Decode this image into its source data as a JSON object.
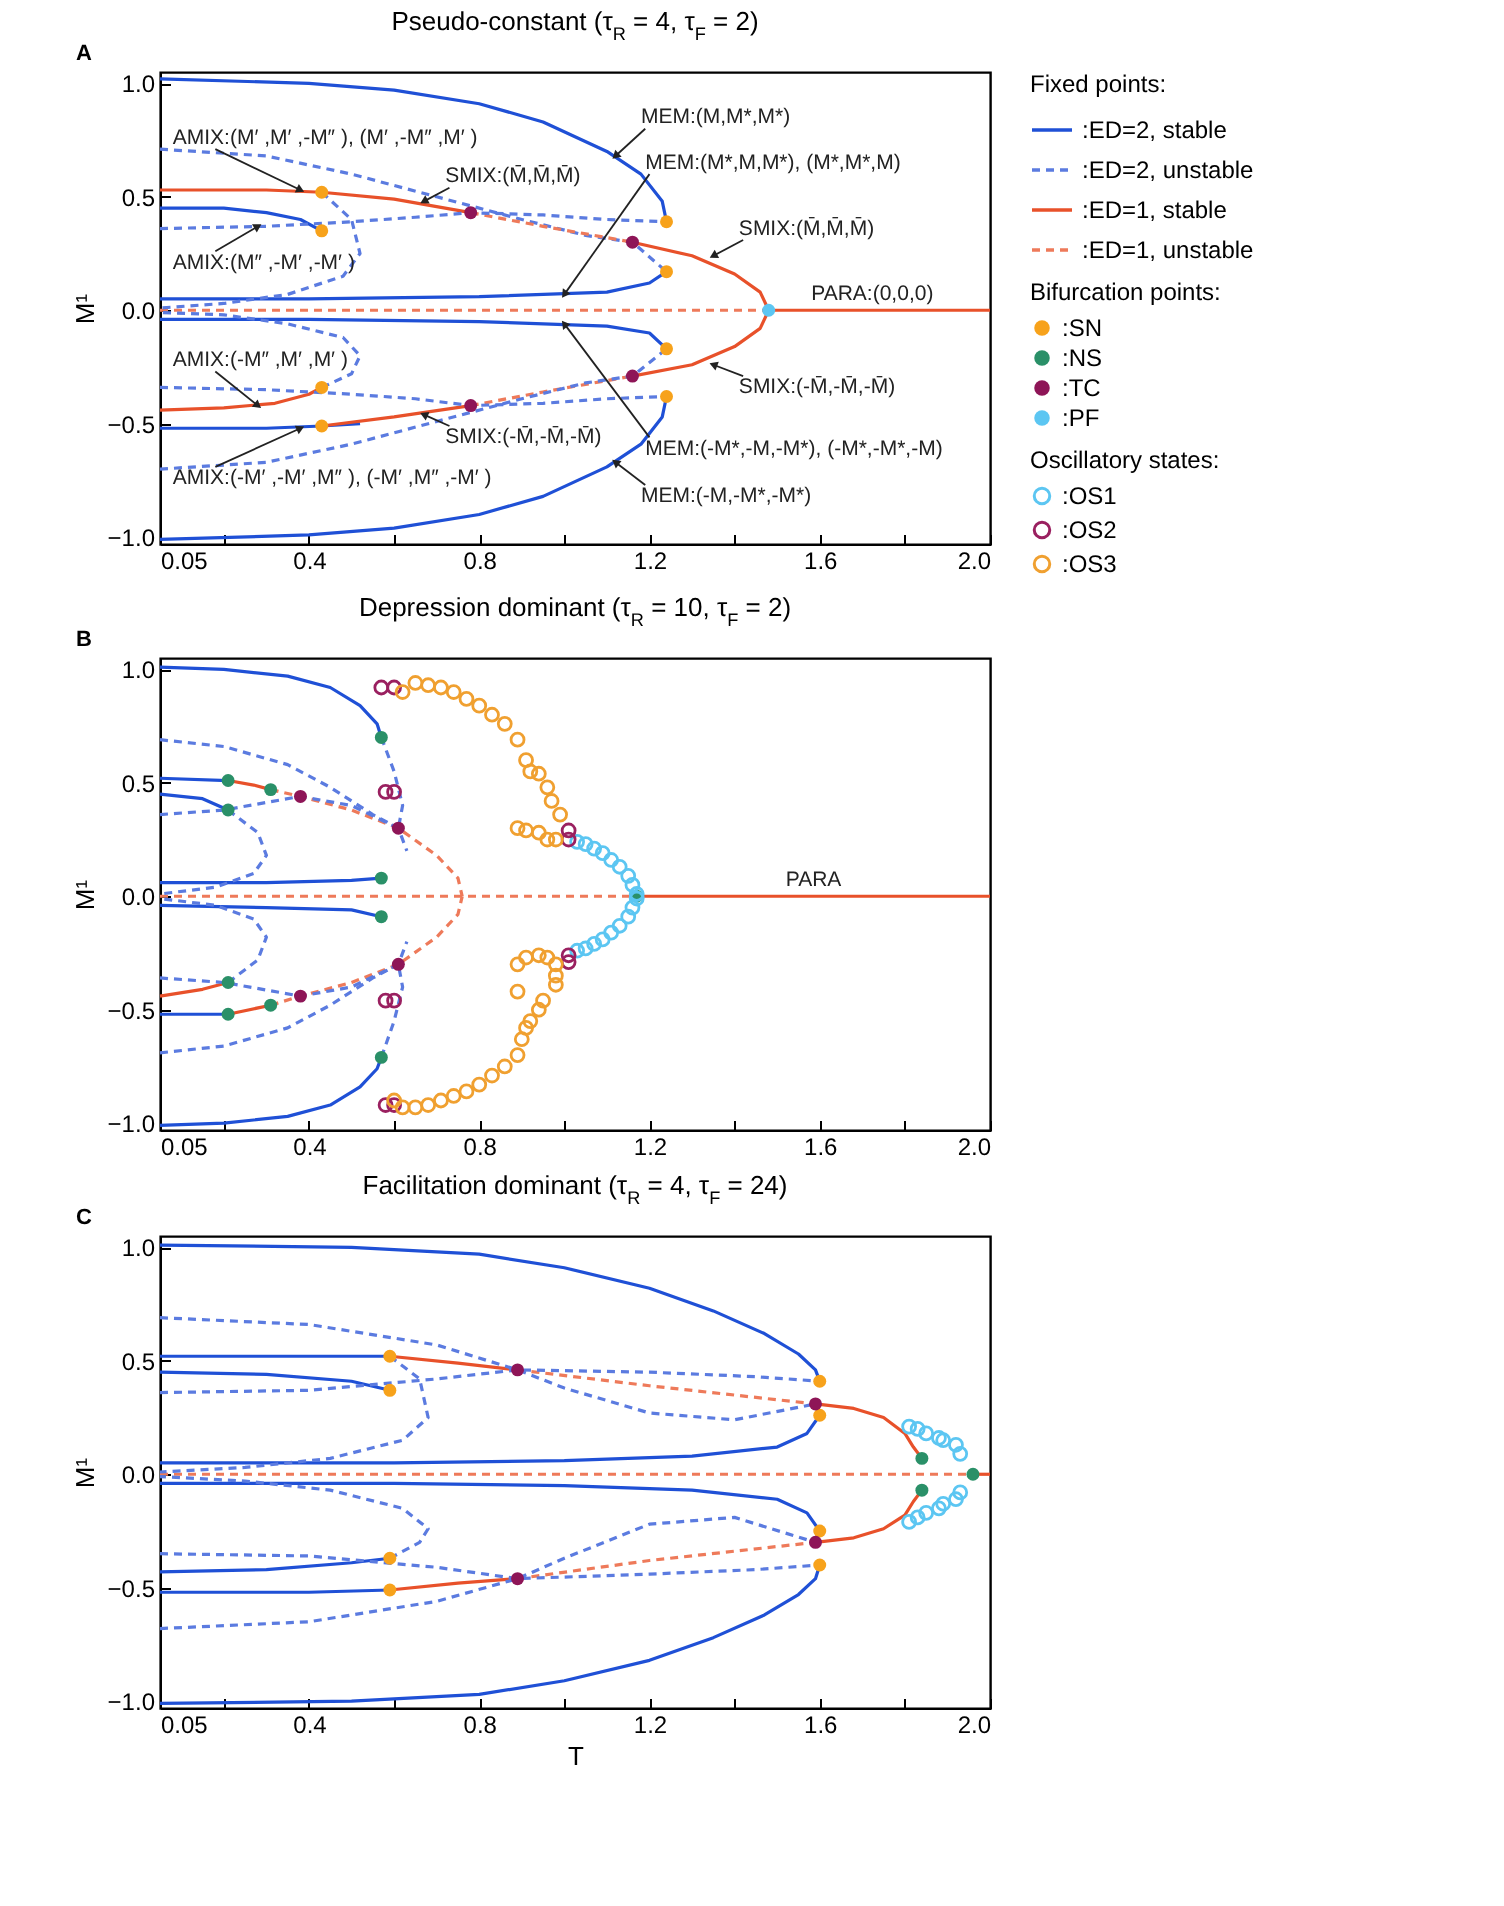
{
  "chart_data": [
    {
      "type": "line",
      "title": "Pseudo-constant (τ$_{R}$ = 4, τ$_{F}$ = 2)",
      "ylabel": "M¹",
      "legend": "right",
      "legend_title": [
        "Fixed points:",
        "Bifurcation points:",
        "Oscillatory states:"
      ],
      "xlim": [
        0.05,
        2.0
      ],
      "ylim": [
        -1.03,
        1.05
      ],
      "xticks": [
        0.05,
        {
          "value": 0.2,
          "label": null
        },
        0.4,
        {
          "value": 0.6,
          "label": null
        },
        0.8,
        {
          "value": 1.0,
          "label": null
        },
        1.2,
        {
          "value": 1.4,
          "label": null
        },
        1.6,
        {
          "value": 1.8,
          "label": null
        },
        {
          "value": 2.0,
          "label": "2.0"
        }
      ],
      "yticks": [
        {
          "value": -1,
          "label": "−1.0"
        },
        {
          "value": -0.5,
          "label": "−0.5"
        },
        {
          "value": 0,
          "label": "0.0"
        },
        {
          "value": 0.5,
          "label": "0.5"
        },
        {
          "value": 1,
          "label": "1.0"
        }
      ],
      "annotations": [
        "A",
        {
          "text": "AMIX:(M′ ,M′ ,-M″ ), (M′ ,-M″ ,M′ )",
          "x": 0.38,
          "y": 0.53
        },
        {
          "text": "AMIX:(M″ ,-M′ ,-M′ )",
          "x": 0.28,
          "y": 0.37
        },
        {
          "text": "AMIX:(-M″ ,M′ ,M′ )",
          "x": 0.28,
          "y": -0.42
        },
        {
          "text": "AMIX:(-M′ ,-M′ ,M″ ), (-M′ ,M″ ,-M′ )",
          "x": 0.38,
          "y": -0.52
        },
        {
          "text": "SMIX:(M̄,M̄,M̄)",
          "x": 0.67,
          "y": 0.48
        },
        {
          "text": "SMIX:(-M̄,-M̄,-M̄)",
          "x": 0.67,
          "y": -0.46
        },
        {
          "text": "MEM:(M,M*,M*)",
          "x": 1.12,
          "y": 0.68
        },
        {
          "text": "MEM:(M*,M,M*), (M*,M*,M)",
          "x": 1.0,
          "y": 0.07
        },
        {
          "text": "SMIX:(M̄,M̄,M̄)",
          "x": 1.35,
          "y": 0.24
        },
        {
          "text": "PARA:(0,0,0)",
          "x": 1.7,
          "y": 0
        },
        {
          "text": "SMIX:(-M̄,-M̄,-M̄)",
          "x": 1.35,
          "y": -0.24
        },
        {
          "text": "MEM:(-M*,-M,-M*), (-M*,-M*,-M)",
          "x": 1.0,
          "y": -0.06
        },
        {
          "text": "MEM:(-M,-M*,-M*)",
          "x": 1.12,
          "y": -0.67
        }
      ],
      "series": [
        {
          "name": ":ED=2, stable",
          "type": "line",
          "line_style": "solid",
          "color": "#1f50d6",
          "x": [
            0.05,
            0.4,
            0.6,
            0.8,
            0.95,
            1.1,
            1.18,
            1.23,
            1.24
          ],
          "values": [
            1.02,
            1.0,
            0.97,
            0.91,
            0.83,
            0.7,
            0.6,
            0.48,
            0.39
          ]
        },
        {
          "name": ":ED=2, unstable",
          "type": "line",
          "line_style": "dashed",
          "color": "#5b7be0",
          "x": [
            0.05,
            0.3,
            0.5,
            0.7,
            0.9,
            1.05,
            1.16,
            1.24
          ],
          "values": [
            0.71,
            0.68,
            0.6,
            0.5,
            0.4,
            0.33,
            0.3,
            0.17
          ]
        },
        {
          "name": ":ED=1, stable",
          "type": "line",
          "line_style": "solid",
          "color": "#e8512a",
          "x": [
            0.05,
            0.3,
            0.43,
            0.6,
            0.78
          ],
          "values": [
            0.53,
            0.53,
            0.52,
            0.49,
            0.43
          ]
        },
        {
          "name": ":ED=1, unstable",
          "type": "line",
          "line_style": "dashed",
          "color": "#ee7a5a",
          "x": [
            0.05,
            1.48
          ],
          "values": [
            0,
            0
          ]
        },
        {
          "type": "line",
          "line_style": "solid",
          "color": "#1f50d6",
          "x": [
            0.05,
            0.4,
            0.6,
            0.8,
            0.95,
            1.1,
            1.18,
            1.23,
            1.24
          ],
          "values": [
            -1.01,
            -0.99,
            -0.96,
            -0.9,
            -0.82,
            -0.69,
            -0.59,
            -0.47,
            -0.38
          ]
        },
        {
          "type": "line",
          "line_style": "solid",
          "color": "#1f50d6",
          "x": [
            0.05,
            0.4,
            0.8,
            1.1,
            1.2,
            1.24
          ],
          "values": [
            0.05,
            0.05,
            0.06,
            0.08,
            0.12,
            0.17
          ]
        },
        {
          "type": "line",
          "line_style": "solid",
          "color": "#1f50d6",
          "x": [
            0.05,
            0.4,
            0.8,
            1.1,
            1.2,
            1.24
          ],
          "values": [
            -0.04,
            -0.04,
            -0.05,
            -0.07,
            -0.1,
            -0.17
          ]
        },
        {
          "type": "line",
          "line_style": "solid",
          "color": "#1f50d6",
          "x": [
            0.05,
            0.2,
            0.3,
            0.38,
            0.43
          ],
          "values": [
            0.45,
            0.45,
            0.43,
            0.4,
            0.35
          ]
        },
        {
          "type": "line",
          "line_style": "solid",
          "color": "#1f50d6",
          "x": [
            0.05,
            0.3,
            0.43,
            0.52
          ],
          "values": [
            -0.52,
            -0.52,
            -0.51,
            -0.5
          ]
        },
        {
          "type": "line",
          "line_style": "solid",
          "color": "#e8512a",
          "x": [
            0.05,
            0.2,
            0.32,
            0.4,
            0.43
          ],
          "values": [
            -0.44,
            -0.43,
            -0.41,
            -0.37,
            -0.34
          ]
        },
        {
          "type": "line",
          "line_style": "solid",
          "color": "#e8512a",
          "x": [
            0.43,
            0.6,
            0.78
          ],
          "values": [
            -0.51,
            -0.47,
            -0.42
          ]
        },
        {
          "type": "line",
          "line_style": "solid",
          "color": "#e8512a",
          "x": [
            1.16,
            1.3,
            1.4,
            1.46,
            1.48
          ],
          "values": [
            0.3,
            0.24,
            0.16,
            0.08,
            0
          ]
        },
        {
          "type": "line",
          "line_style": "solid",
          "color": "#e8512a",
          "x": [
            1.16,
            1.3,
            1.4,
            1.46,
            1.48
          ],
          "values": [
            -0.29,
            -0.24,
            -0.16,
            -0.08,
            0
          ]
        },
        {
          "type": "line",
          "line_style": "solid",
          "color": "#e8512a",
          "x": [
            1.48,
            2.0
          ],
          "values": [
            0,
            0
          ]
        },
        {
          "type": "line",
          "line_style": "dashed",
          "color": "#ee7a5a",
          "x": [
            0.78,
            0.95,
            1.16
          ],
          "values": [
            0.43,
            0.37,
            0.3
          ]
        },
        {
          "type": "line",
          "line_style": "dashed",
          "color": "#ee7a5a",
          "x": [
            0.78,
            0.95,
            1.16
          ],
          "values": [
            -0.42,
            -0.36,
            -0.29
          ]
        },
        {
          "type": "line",
          "line_style": "dashed",
          "color": "#5b7be0",
          "x": [
            0.05,
            0.3,
            0.5,
            0.65,
            0.78,
            0.95,
            1.1,
            1.24
          ],
          "values": [
            0.36,
            0.37,
            0.39,
            0.41,
            0.43,
            0.42,
            0.4,
            0.39
          ]
        },
        {
          "type": "line",
          "line_style": "dashed",
          "color": "#5b7be0",
          "x": [
            0.43,
            0.5,
            0.52,
            0.48,
            0.35,
            0.2,
            0.05
          ],
          "values": [
            0.52,
            0.4,
            0.25,
            0.15,
            0.07,
            0.03,
            0.01
          ]
        },
        {
          "type": "line",
          "line_style": "dashed",
          "color": "#5b7be0",
          "x": [
            0.05,
            0.3,
            0.5,
            0.7,
            0.9,
            1.05,
            1.16,
            1.24
          ],
          "values": [
            -0.7,
            -0.67,
            -0.59,
            -0.49,
            -0.39,
            -0.32,
            -0.29,
            -0.17
          ]
        },
        {
          "type": "line",
          "line_style": "dashed",
          "color": "#5b7be0",
          "x": [
            0.05,
            0.3,
            0.5,
            0.65,
            0.78,
            0.95,
            1.1,
            1.24
          ],
          "values": [
            -0.34,
            -0.35,
            -0.37,
            -0.39,
            -0.42,
            -0.41,
            -0.39,
            -0.38
          ]
        },
        {
          "type": "line",
          "line_style": "dashed",
          "color": "#5b7be0",
          "x": [
            0.43,
            0.5,
            0.52,
            0.48,
            0.35,
            0.2,
            0.05
          ],
          "values": [
            -0.34,
            -0.28,
            -0.2,
            -0.12,
            -0.06,
            -0.02,
            -0.01
          ]
        },
        {
          "name": ":SN",
          "type": "scatter",
          "marker": "circle",
          "color": "#f7a21b",
          "x": [
            0.43,
            0.43,
            0.43,
            0.43,
            1.24,
            1.24,
            1.24,
            1.24
          ],
          "values": [
            0.52,
            0.35,
            -0.34,
            -0.51,
            0.39,
            0.17,
            -0.17,
            -0.38
          ]
        },
        {
          "name": ":NS",
          "type": "scatter",
          "marker": "circle",
          "color": "#2a9068"
        },
        {
          "name": ":TC",
          "type": "scatter",
          "marker": "circle",
          "color": "#8e1557",
          "x": [
            0.78,
            1.16,
            0.78,
            1.16
          ],
          "values": [
            0.43,
            0.3,
            -0.42,
            -0.29
          ]
        },
        {
          "name": ":PF",
          "type": "scatter",
          "marker": "circle",
          "color": "#5cc6f2",
          "x": [
            1.48
          ],
          "values": [
            0
          ]
        },
        {
          "name": ":OS1",
          "type": "scatter",
          "marker": "circle-open",
          "color": "#5cc6f2"
        },
        {
          "name": ":OS2",
          "type": "scatter",
          "marker": "circle-open",
          "color": "#9a2060"
        },
        {
          "name": ":OS3",
          "type": "scatter",
          "marker": "circle-open",
          "color": "#f0a030"
        }
      ]
    },
    {
      "type": "line",
      "title": "Depression dominant (τ$_{R}$ = 10, τ$_{F}$ = 2)",
      "ylabel": "M¹",
      "xlim": [
        0.05,
        2.0
      ],
      "ylim": [
        -1.03,
        1.05
      ],
      "xticks": [
        0.05,
        {
          "value": 0.2,
          "label": null
        },
        0.4,
        {
          "value": 0.6,
          "label": null
        },
        0.8,
        {
          "value": 1.0,
          "label": null
        },
        1.2,
        {
          "value": 1.4,
          "label": null
        },
        1.6,
        {
          "value": 1.8,
          "label": null
        },
        {
          "value": 2.0,
          "label": "2.0"
        }
      ],
      "yticks": [
        {
          "value": -1,
          "label": "−1.0"
        },
        {
          "value": -0.5,
          "label": "−0.5"
        },
        {
          "value": 0,
          "label": "0.0"
        },
        {
          "value": 0.5,
          "label": "0.5"
        },
        {
          "value": 1,
          "label": "1.0"
        }
      ],
      "annotations": [
        "B",
        {
          "text": "PARA",
          "x": 1.6,
          "y": 0
        }
      ],
      "series": [
        {
          "type": "line",
          "line_style": "solid",
          "color": "#1f50d6",
          "x": [
            0.05,
            0.2,
            0.35,
            0.45,
            0.52,
            0.56,
            0.57
          ],
          "values": [
            1.01,
            1.0,
            0.97,
            0.92,
            0.84,
            0.76,
            0.7
          ]
        },
        {
          "type": "line",
          "line_style": "solid",
          "color": "#1f50d6",
          "x": [
            0.05,
            0.2,
            0.35,
            0.45,
            0.52,
            0.56,
            0.57
          ],
          "values": [
            -1.01,
            -1.0,
            -0.97,
            -0.92,
            -0.84,
            -0.76,
            -0.71
          ]
        },
        {
          "type": "line",
          "line_style": "solid",
          "color": "#1f50d6",
          "x": [
            0.05,
            0.3,
            0.5,
            0.57
          ],
          "values": [
            0.06,
            0.06,
            0.07,
            0.08
          ]
        },
        {
          "type": "line",
          "line_style": "solid",
          "color": "#1f50d6",
          "x": [
            0.05,
            0.3,
            0.5,
            0.57
          ],
          "values": [
            -0.04,
            -0.05,
            -0.06,
            -0.09
          ]
        },
        {
          "type": "line",
          "line_style": "solid",
          "color": "#1f50d6",
          "x": [
            0.05,
            0.21
          ],
          "values": [
            0.52,
            0.51
          ]
        },
        {
          "type": "line",
          "line_style": "solid",
          "color": "#1f50d6",
          "x": [
            0.05,
            0.15,
            0.21
          ],
          "values": [
            0.45,
            0.43,
            0.38
          ]
        },
        {
          "type": "line",
          "line_style": "solid",
          "color": "#1f50d6",
          "x": [
            0.05,
            0.21
          ],
          "values": [
            -0.52,
            -0.52
          ]
        },
        {
          "type": "line",
          "line_style": "solid",
          "color": "#e8512a",
          "x": [
            0.21,
            0.27,
            0.31
          ],
          "values": [
            0.51,
            0.49,
            0.47
          ]
        },
        {
          "type": "line",
          "line_style": "solid",
          "color": "#e8512a",
          "x": [
            0.05,
            0.15,
            0.21
          ],
          "values": [
            -0.44,
            -0.41,
            -0.38
          ]
        },
        {
          "type": "line",
          "line_style": "solid",
          "color": "#e8512a",
          "x": [
            0.21,
            0.31
          ],
          "values": [
            -0.52,
            -0.48
          ]
        },
        {
          "type": "line",
          "line_style": "solid",
          "color": "#e8512a",
          "x": [
            1.17,
            2.0
          ],
          "values": [
            0,
            0
          ]
        },
        {
          "type": "line",
          "line_style": "dashed",
          "color": "#ee7a5a",
          "x": [
            0.05,
            1.17
          ],
          "values": [
            0,
            0
          ]
        },
        {
          "type": "line",
          "line_style": "dashed",
          "color": "#ee7a5a",
          "x": [
            0.31,
            0.38,
            0.5,
            0.61,
            0.7,
            0.75,
            0.76
          ],
          "values": [
            0.47,
            0.44,
            0.38,
            0.3,
            0.18,
            0.08,
            0
          ]
        },
        {
          "type": "line",
          "line_style": "dashed",
          "color": "#ee7a5a",
          "x": [
            0.31,
            0.38,
            0.5,
            0.61,
            0.7,
            0.75,
            0.76
          ],
          "values": [
            -0.48,
            -0.44,
            -0.38,
            -0.3,
            -0.18,
            -0.08,
            0
          ]
        },
        {
          "type": "line",
          "line_style": "dashed",
          "color": "#5b7be0",
          "x": [
            0.05,
            0.2,
            0.35,
            0.45,
            0.55,
            0.61,
            0.63
          ],
          "values": [
            0.69,
            0.66,
            0.58,
            0.48,
            0.36,
            0.3,
            0.2
          ]
        },
        {
          "type": "line",
          "line_style": "dashed",
          "color": "#5b7be0",
          "x": [
            0.05,
            0.2,
            0.38,
            0.5,
            0.61
          ],
          "values": [
            0.36,
            0.38,
            0.44,
            0.4,
            0.3
          ]
        },
        {
          "type": "line",
          "line_style": "dashed",
          "color": "#5b7be0",
          "x": [
            0.21,
            0.28,
            0.3,
            0.27,
            0.18,
            0.05
          ],
          "values": [
            0.38,
            0.28,
            0.18,
            0.1,
            0.04,
            0.01
          ]
        },
        {
          "type": "line",
          "line_style": "dashed",
          "color": "#5b7be0",
          "x": [
            0.05,
            0.2,
            0.35,
            0.45,
            0.55,
            0.61,
            0.63
          ],
          "values": [
            -0.69,
            -0.66,
            -0.58,
            -0.48,
            -0.36,
            -0.3,
            -0.2
          ]
        },
        {
          "type": "line",
          "line_style": "dashed",
          "color": "#5b7be0",
          "x": [
            0.05,
            0.2,
            0.38,
            0.5,
            0.61
          ],
          "values": [
            -0.36,
            -0.38,
            -0.44,
            -0.4,
            -0.3
          ]
        },
        {
          "type": "line",
          "line_style": "dashed",
          "color": "#5b7be0",
          "x": [
            0.21,
            0.28,
            0.3,
            0.27,
            0.18,
            0.05
          ],
          "values": [
            -0.38,
            -0.28,
            -0.18,
            -0.1,
            -0.04,
            -0.01
          ]
        },
        {
          "type": "line",
          "line_style": "dashed",
          "color": "#5b7be0",
          "x": [
            0.57,
            0.6,
            0.62,
            0.61
          ],
          "values": [
            0.7,
            0.55,
            0.4,
            0.3
          ]
        },
        {
          "type": "line",
          "line_style": "dashed",
          "color": "#5b7be0",
          "x": [
            0.57,
            0.6,
            0.62,
            0.61
          ],
          "values": [
            -0.71,
            -0.55,
            -0.4,
            -0.3
          ]
        },
        {
          "type": "scatter",
          "marker": "circle-open",
          "color": "#5cc6f2",
          "x": [
            1.03,
            1.05,
            1.07,
            1.09,
            1.11,
            1.13,
            1.15,
            1.16,
            1.17,
            1.03,
            1.05,
            1.07,
            1.09,
            1.11,
            1.13,
            1.15,
            1.16,
            1.17
          ],
          "values": [
            0.24,
            0.23,
            0.21,
            0.19,
            0.16,
            0.13,
            0.09,
            0.05,
            0.01,
            -0.24,
            -0.23,
            -0.21,
            -0.19,
            -0.16,
            -0.13,
            -0.09,
            -0.05,
            -0.01
          ]
        },
        {
          "type": "scatter",
          "marker": "circle-open",
          "color": "#9a2060",
          "x": [
            0.57,
            0.6,
            0.58,
            0.6,
            0.58,
            0.6,
            0.58,
            0.6,
            1.01,
            1.01,
            1.01,
            1.01
          ],
          "values": [
            0.92,
            0.92,
            0.46,
            0.46,
            -0.46,
            -0.46,
            -0.92,
            -0.92,
            0.29,
            0.25,
            -0.26,
            -0.29
          ]
        },
        {
          "type": "scatter",
          "marker": "circle-open",
          "color": "#f0a030",
          "x": [
            0.62,
            0.65,
            0.68,
            0.71,
            0.74,
            0.77,
            0.8,
            0.83,
            0.86,
            0.89,
            0.91,
            0.92,
            0.94,
            0.96,
            0.97,
            0.99,
            0.89,
            0.91,
            0.94,
            0.96,
            0.98,
            0.6,
            0.62,
            0.65,
            0.68,
            0.71,
            0.74,
            0.77,
            0.8,
            0.83,
            0.86,
            0.89,
            0.9,
            0.91,
            0.92,
            0.94,
            0.95,
            0.98,
            0.89,
            0.91,
            0.94,
            0.96,
            0.98,
            0.89,
            0.98
          ],
          "values": [
            0.9,
            0.94,
            0.93,
            0.92,
            0.9,
            0.87,
            0.84,
            0.8,
            0.76,
            0.69,
            0.6,
            0.55,
            0.54,
            0.48,
            0.42,
            0.36,
            0.3,
            0.29,
            0.28,
            0.25,
            0.25,
            -0.9,
            -0.93,
            -0.93,
            -0.92,
            -0.9,
            -0.88,
            -0.86,
            -0.83,
            -0.79,
            -0.75,
            -0.7,
            -0.63,
            -0.58,
            -0.55,
            -0.5,
            -0.46,
            -0.39,
            -0.3,
            -0.27,
            -0.26,
            -0.27,
            -0.3,
            -0.42,
            -0.35
          ]
        },
        {
          "type": "scatter",
          "marker": "circle",
          "color": "#2a9068",
          "x": [
            0.57,
            0.57,
            0.57,
            0.57,
            0.21,
            0.21,
            0.21,
            0.21,
            0.31,
            0.31,
            1.17
          ],
          "values": [
            0.7,
            -0.71,
            0.08,
            -0.09,
            0.51,
            0.38,
            -0.38,
            -0.52,
            0.47,
            -0.48,
            0
          ]
        },
        {
          "type": "scatter",
          "marker": "circle",
          "color": "#8e1557",
          "x": [
            0.38,
            0.38,
            0.61,
            0.61
          ],
          "values": [
            0.44,
            -0.44,
            0.3,
            -0.3
          ]
        }
      ]
    },
    {
      "type": "line",
      "title": "Facilitation dominant (τ$_{R}$ = 4, τ$_{F}$ = 24)",
      "xlabel": "T",
      "ylabel": "M¹",
      "xlim": [
        0.05,
        2.0
      ],
      "ylim": [
        -1.03,
        1.05
      ],
      "xticks": [
        0.05,
        {
          "value": 0.2,
          "label": null
        },
        0.4,
        {
          "value": 0.6,
          "label": null
        },
        0.8,
        {
          "value": 1.0,
          "label": null
        },
        1.2,
        {
          "value": 1.4,
          "label": null
        },
        1.6,
        {
          "value": 1.8,
          "label": null
        },
        {
          "value": 2.0,
          "label": "2.0"
        }
      ],
      "yticks": [
        {
          "value": -1,
          "label": "−1.0"
        },
        {
          "value": -0.5,
          "label": "−0.5"
        },
        {
          "value": 0,
          "label": "0.0"
        },
        {
          "value": 0.5,
          "label": "0.5"
        },
        {
          "value": 1,
          "label": "1.0"
        }
      ],
      "annotations": [
        "C"
      ],
      "series": [
        {
          "type": "line",
          "line_style": "solid",
          "color": "#1f50d6",
          "x": [
            0.05,
            0.5,
            0.8,
            1.0,
            1.2,
            1.35,
            1.47,
            1.55,
            1.59,
            1.6
          ],
          "values": [
            1.01,
            1.0,
            0.97,
            0.91,
            0.82,
            0.72,
            0.62,
            0.53,
            0.46,
            0.41
          ]
        },
        {
          "type": "line",
          "line_style": "solid",
          "color": "#1f50d6",
          "x": [
            0.05,
            0.5,
            0.8,
            1.0,
            1.2,
            1.35,
            1.47,
            1.55,
            1.59,
            1.6
          ],
          "values": [
            -1.01,
            -1.0,
            -0.97,
            -0.91,
            -0.82,
            -0.72,
            -0.62,
            -0.53,
            -0.46,
            -0.4
          ]
        },
        {
          "type": "line",
          "line_style": "solid",
          "color": "#1f50d6",
          "x": [
            0.05,
            0.6,
            1.0,
            1.3,
            1.5,
            1.57,
            1.6
          ],
          "values": [
            0.05,
            0.05,
            0.06,
            0.08,
            0.12,
            0.18,
            0.26
          ]
        },
        {
          "type": "line",
          "line_style": "solid",
          "color": "#1f50d6",
          "x": [
            0.05,
            0.6,
            1.0,
            1.3,
            1.5,
            1.57,
            1.6
          ],
          "values": [
            -0.04,
            -0.04,
            -0.05,
            -0.07,
            -0.11,
            -0.17,
            -0.25
          ]
        },
        {
          "type": "line",
          "line_style": "solid",
          "color": "#1f50d6",
          "x": [
            0.05,
            0.4,
            0.59
          ],
          "values": [
            0.52,
            0.52,
            0.52
          ]
        },
        {
          "type": "line",
          "line_style": "solid",
          "color": "#1f50d6",
          "x": [
            0.05,
            0.3,
            0.5,
            0.59
          ],
          "values": [
            0.45,
            0.44,
            0.41,
            0.37
          ]
        },
        {
          "type": "line",
          "line_style": "solid",
          "color": "#1f50d6",
          "x": [
            0.05,
            0.3,
            0.5,
            0.59
          ],
          "values": [
            -0.43,
            -0.42,
            -0.39,
            -0.37
          ]
        },
        {
          "type": "line",
          "line_style": "solid",
          "color": "#1f50d6",
          "x": [
            0.05,
            0.4,
            0.59
          ],
          "values": [
            -0.52,
            -0.52,
            -0.51
          ]
        },
        {
          "type": "line",
          "line_style": "solid",
          "color": "#e8512a",
          "x": [
            0.59,
            0.75,
            0.89
          ],
          "values": [
            0.52,
            0.49,
            0.46
          ]
        },
        {
          "type": "line",
          "line_style": "solid",
          "color": "#e8512a",
          "x": [
            0.59,
            0.75,
            0.89
          ],
          "values": [
            -0.51,
            -0.48,
            -0.46
          ]
        },
        {
          "type": "line",
          "line_style": "solid",
          "color": "#e8512a",
          "x": [
            1.59,
            1.68,
            1.75,
            1.8,
            1.82,
            1.84
          ],
          "values": [
            0.31,
            0.29,
            0.25,
            0.18,
            0.12,
            0.07
          ]
        },
        {
          "type": "line",
          "line_style": "solid",
          "color": "#e8512a",
          "x": [
            1.59,
            1.68,
            1.75,
            1.8,
            1.82,
            1.84
          ],
          "values": [
            -0.3,
            -0.28,
            -0.24,
            -0.18,
            -0.12,
            -0.07
          ]
        },
        {
          "type": "line",
          "line_style": "solid",
          "color": "#e8512a",
          "x": [
            1.96,
            2.0
          ],
          "values": [
            0,
            0
          ]
        },
        {
          "type": "line",
          "line_style": "dashed",
          "color": "#ee7a5a",
          "x": [
            0.05,
            1.96
          ],
          "values": [
            0,
            0
          ]
        },
        {
          "type": "line",
          "line_style": "dashed",
          "color": "#ee7a5a",
          "x": [
            0.89,
            1.2,
            1.59
          ],
          "values": [
            0.46,
            0.39,
            0.31
          ]
        },
        {
          "type": "line",
          "line_style": "dashed",
          "color": "#ee7a5a",
          "x": [
            0.89,
            1.2,
            1.59
          ],
          "values": [
            -0.46,
            -0.38,
            -0.3
          ]
        },
        {
          "type": "line",
          "line_style": "dashed",
          "color": "#5b7be0",
          "x": [
            0.05,
            0.4,
            0.7,
            0.89,
            1.0,
            1.2,
            1.4,
            1.59
          ],
          "values": [
            0.69,
            0.66,
            0.57,
            0.46,
            0.38,
            0.27,
            0.24,
            0.31
          ]
        },
        {
          "type": "line",
          "line_style": "dashed",
          "color": "#5b7be0",
          "x": [
            0.05,
            0.4,
            0.7,
            0.89,
            1.2,
            1.45,
            1.6
          ],
          "values": [
            0.36,
            0.37,
            0.42,
            0.46,
            0.45,
            0.43,
            0.41
          ]
        },
        {
          "type": "line",
          "line_style": "dashed",
          "color": "#5b7be0",
          "x": [
            0.59,
            0.66,
            0.68,
            0.62,
            0.45,
            0.25,
            0.05
          ],
          "values": [
            0.52,
            0.42,
            0.25,
            0.15,
            0.07,
            0.03,
            0.01
          ]
        },
        {
          "type": "line",
          "line_style": "dashed",
          "color": "#5b7be0",
          "x": [
            0.05,
            0.4,
            0.7,
            0.89,
            1.0,
            1.2,
            1.4,
            1.59
          ],
          "values": [
            -0.68,
            -0.65,
            -0.56,
            -0.46,
            -0.37,
            -0.22,
            -0.19,
            -0.3
          ]
        },
        {
          "type": "line",
          "line_style": "dashed",
          "color": "#5b7be0",
          "x": [
            0.05,
            0.4,
            0.7,
            0.89,
            1.2,
            1.45,
            1.6
          ],
          "values": [
            -0.35,
            -0.36,
            -0.41,
            -0.46,
            -0.44,
            -0.42,
            -0.4
          ]
        },
        {
          "type": "line",
          "line_style": "dashed",
          "color": "#5b7be0",
          "x": [
            0.59,
            0.66,
            0.68,
            0.62,
            0.45,
            0.25,
            0.05
          ],
          "values": [
            -0.37,
            -0.3,
            -0.24,
            -0.15,
            -0.07,
            -0.03,
            -0.01
          ]
        },
        {
          "type": "scatter",
          "marker": "circle-open",
          "color": "#5cc6f2",
          "x": [
            1.81,
            1.83,
            1.85,
            1.88,
            1.89,
            1.92,
            1.93,
            1.81,
            1.83,
            1.85,
            1.88,
            1.89,
            1.92,
            1.93
          ],
          "values": [
            0.21,
            0.2,
            0.18,
            0.16,
            0.15,
            0.13,
            0.09,
            -0.21,
            -0.19,
            -0.17,
            -0.15,
            -0.13,
            -0.11,
            -0.08
          ]
        },
        {
          "type": "scatter",
          "marker": "circle",
          "color": "#f7a21b",
          "x": [
            0.59,
            0.59,
            0.59,
            0.59,
            1.6,
            1.6,
            1.6,
            1.6
          ],
          "values": [
            0.52,
            0.37,
            -0.37,
            -0.51,
            0.41,
            0.26,
            -0.25,
            -0.4
          ]
        },
        {
          "type": "scatter",
          "marker": "circle",
          "color": "#8e1557",
          "x": [
            0.89,
            0.89,
            1.59,
            1.59
          ],
          "values": [
            0.46,
            -0.46,
            0.31,
            -0.3
          ]
        },
        {
          "type": "scatter",
          "marker": "circle",
          "color": "#2a9068",
          "x": [
            1.84,
            1.84,
            1.96
          ],
          "values": [
            0.07,
            -0.07,
            0
          ]
        }
      ]
    }
  ]
}
